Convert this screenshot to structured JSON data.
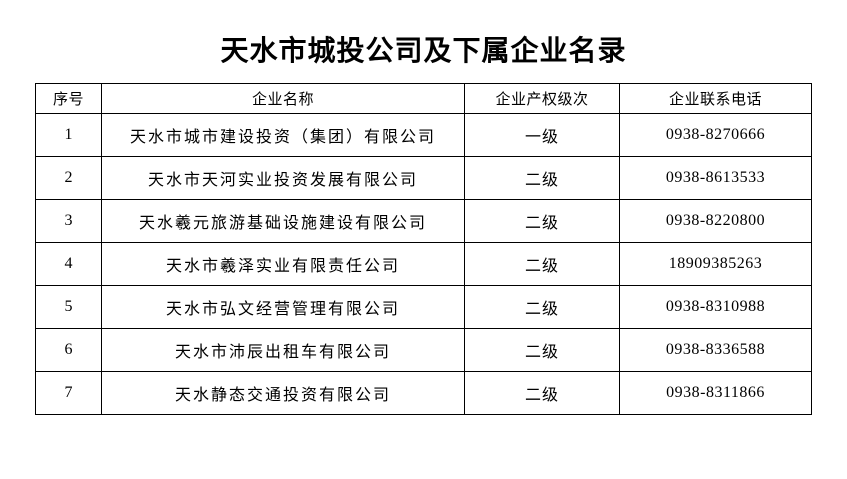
{
  "title": "天水市城投公司及下属企业名录",
  "table": {
    "headers": {
      "no": "序号",
      "name": "企业名称",
      "level": "企业产权级次",
      "phone": "企业联系电话"
    },
    "rows": [
      {
        "no": "1",
        "name": "天水市城市建设投资（集团）有限公司",
        "level": "一级",
        "phone": "0938-8270666"
      },
      {
        "no": "2",
        "name": "天水市天河实业投资发展有限公司",
        "level": "二级",
        "phone": "0938-8613533"
      },
      {
        "no": "3",
        "name": "天水羲元旅游基础设施建设有限公司",
        "level": "二级",
        "phone": "0938-8220800"
      },
      {
        "no": "4",
        "name": "天水市羲泽实业有限责任公司",
        "level": "二级",
        "phone": "18909385263"
      },
      {
        "no": "5",
        "name": "天水市弘文经营管理有限公司",
        "level": "二级",
        "phone": "0938-8310988"
      },
      {
        "no": "6",
        "name": "天水市沛辰出租车有限公司",
        "level": "二级",
        "phone": "0938-8336588"
      },
      {
        "no": "7",
        "name": "天水静态交通投资有限公司",
        "level": "二级",
        "phone": "0938-8311866"
      }
    ]
  },
  "colors": {
    "text": "#000000",
    "border": "#000000",
    "background": "#ffffff"
  }
}
